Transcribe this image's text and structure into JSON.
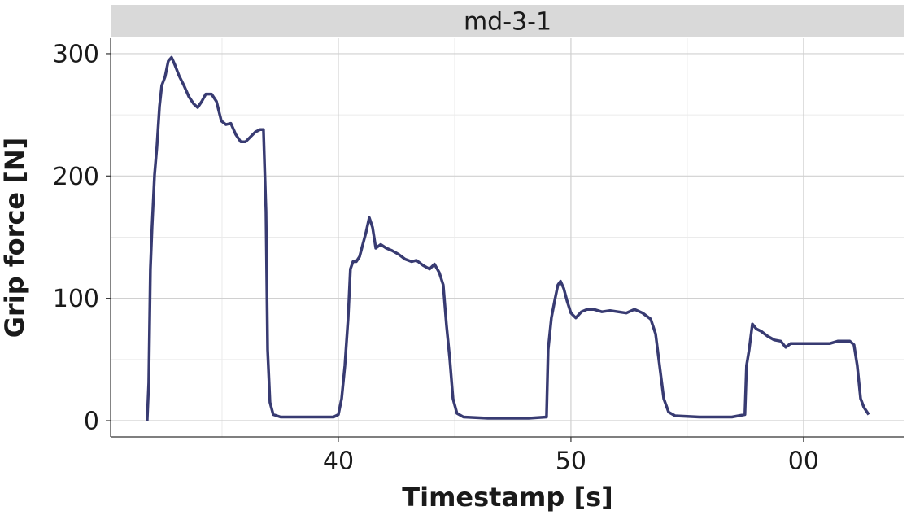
{
  "chart_data": {
    "type": "line",
    "facet_title": "md-3-1",
    "x_label": "Timestamp [s]",
    "y_label": "Grip force [N]",
    "xlim": [
      30.21,
      64.34
    ],
    "ylim": [
      -13.3,
      312.6
    ],
    "xticks": [
      40,
      50,
      {
        "value": 60,
        "label": "00"
      }
    ],
    "yticks": [
      0,
      100,
      200,
      300
    ],
    "x_minor_ticks": [
      35,
      45,
      55
    ],
    "y_minor_ticks": [
      50,
      150,
      250
    ],
    "grid": true,
    "series": [
      {
        "color": "#383b72",
        "x": [
          31.78,
          31.85,
          31.92,
          31.99,
          32.1,
          32.2,
          32.31,
          32.41,
          32.55,
          32.69,
          32.83,
          32.97,
          33.15,
          33.36,
          33.57,
          33.78,
          33.95,
          34.13,
          34.3,
          34.55,
          34.76,
          34.97,
          35.17,
          35.38,
          35.59,
          35.8,
          36.01,
          36.22,
          36.43,
          36.64,
          36.78,
          36.89,
          36.96,
          37.06,
          37.2,
          37.52,
          38.74,
          39.79,
          40,
          40.14,
          40.28,
          40.42,
          40.52,
          40.63,
          40.77,
          40.91,
          41.05,
          41.19,
          41.33,
          41.47,
          41.61,
          41.82,
          42.06,
          42.31,
          42.59,
          42.87,
          43.15,
          43.36,
          43.64,
          43.92,
          44.13,
          44.34,
          44.51,
          44.65,
          44.79,
          44.93,
          45.1,
          45.38,
          46.43,
          48.18,
          48.95,
          49.02,
          49.16,
          49.3,
          49.44,
          49.55,
          49.69,
          49.83,
          50,
          50.21,
          50.45,
          50.7,
          50.98,
          51.33,
          51.68,
          52.03,
          52.38,
          52.73,
          53.08,
          53.43,
          53.64,
          53.81,
          53.99,
          54.2,
          54.48,
          55.52,
          56.92,
          57.48,
          57.55,
          57.66,
          57.8,
          57.97,
          58.18,
          58.46,
          58.74,
          59.02,
          59.23,
          59.44,
          59.72,
          60.07,
          60.42,
          60.77,
          61.12,
          61.47,
          61.99,
          62.17,
          62.31,
          62.45,
          62.59,
          62.8
        ],
        "values": [
          0,
          31,
          124,
          158,
          201,
          224,
          257,
          274,
          281,
          294,
          297,
          291,
          282,
          274,
          265,
          259,
          256,
          261,
          267,
          267,
          261,
          245,
          242,
          243,
          234,
          228,
          228,
          232,
          236,
          238,
          238,
          171,
          58,
          15,
          5,
          3,
          3,
          3,
          5,
          18,
          45,
          84,
          124,
          130,
          130,
          134,
          144,
          154,
          166,
          158,
          141,
          144,
          141,
          139,
          136,
          132,
          130,
          131,
          127,
          124,
          128,
          121,
          111,
          78,
          51,
          18,
          6,
          3,
          2,
          2,
          3,
          58,
          84,
          98,
          111,
          114,
          108,
          98,
          88,
          84,
          89,
          91,
          91,
          89,
          90,
          89,
          88,
          91,
          88,
          83,
          71,
          45,
          18,
          7,
          4,
          3,
          3,
          5,
          45,
          58,
          79,
          75,
          73,
          69,
          66,
          65,
          60,
          63,
          63,
          63,
          63,
          63,
          63,
          65,
          65,
          62,
          45,
          18,
          11,
          5
        ]
      }
    ]
  }
}
